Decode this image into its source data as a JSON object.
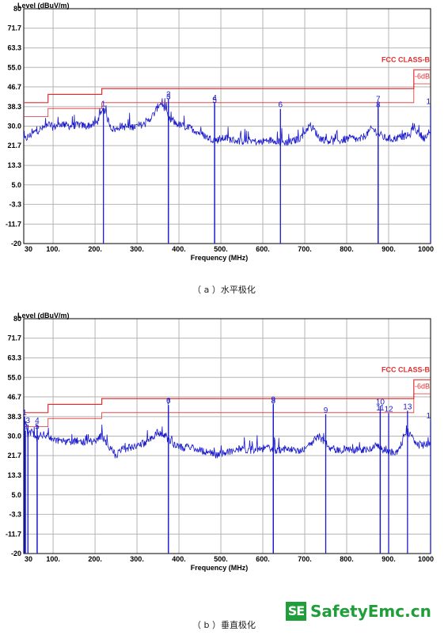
{
  "captions": {
    "a": "（ a ）水平极化",
    "b": "（ b ）垂直极化"
  },
  "watermark": {
    "box": "SE",
    "text": "SafetyEmc.cn"
  },
  "colors": {
    "grid": "#b4b4b4",
    "trace": "#1a1acc",
    "limit": "#e03030",
    "axis": "#000000",
    "marker": "#1a1acc"
  },
  "chart_data": [
    {
      "type": "line",
      "id": "a",
      "xlabel": "Frequency (MHz)",
      "ylabel": "Level (dBuV/m)",
      "xlim": [
        30,
        1000
      ],
      "ylim": [
        -20,
        80
      ],
      "xticks": [
        30,
        100,
        200,
        300,
        400,
        500,
        600,
        700,
        800,
        900,
        1000
      ],
      "xtick_labels": [
        "30",
        "100.",
        "200.",
        "300.",
        "400.",
        "500.",
        "600.",
        "700.",
        "800.",
        "900.",
        "1000"
      ],
      "yticks": [
        -20,
        -11.7,
        -3.3,
        5.0,
        13.3,
        21.7,
        30.0,
        38.3,
        46.7,
        55.0,
        63.3,
        71.7,
        80
      ],
      "ytick_labels": [
        "-20",
        "-11.7",
        "-3.3",
        "5.0",
        "13.3",
        "21.7",
        "30.0",
        "38.3",
        "46.7",
        "55.0",
        "63.3",
        "71.7",
        "80"
      ],
      "limit_labels": [
        "FCC CLASS-B",
        "-6dB"
      ],
      "limits": [
        {
          "name": "FCC CLASS-B",
          "points": [
            [
              30,
              40
            ],
            [
              88,
              40
            ],
            [
              88,
              43.5
            ],
            [
              216,
              43.5
            ],
            [
              216,
              46
            ],
            [
              960,
              46
            ],
            [
              960,
              54
            ],
            [
              1000,
              54
            ]
          ]
        },
        {
          "name": "-6dB",
          "points": [
            [
              30,
              34
            ],
            [
              88,
              34
            ],
            [
              88,
              37.5
            ],
            [
              216,
              37.5
            ],
            [
              216,
              40
            ],
            [
              960,
              40
            ],
            [
              960,
              48
            ],
            [
              1000,
              48
            ]
          ]
        }
      ],
      "trace": {
        "points": [
          [
            30,
            24
          ],
          [
            45,
            26
          ],
          [
            60,
            28
          ],
          [
            75,
            29
          ],
          [
            88,
            31
          ],
          [
            100,
            29.5
          ],
          [
            120,
            31
          ],
          [
            140,
            30
          ],
          [
            160,
            30.5
          ],
          [
            180,
            30
          ],
          [
            200,
            31
          ],
          [
            210,
            33
          ],
          [
            220,
            37
          ],
          [
            230,
            33
          ],
          [
            240,
            29
          ],
          [
            250,
            28.5
          ],
          [
            260,
            30
          ],
          [
            280,
            29.5
          ],
          [
            300,
            30
          ],
          [
            320,
            31
          ],
          [
            340,
            35
          ],
          [
            355,
            40
          ],
          [
            365,
            38
          ],
          [
            375,
            33
          ],
          [
            385,
            32
          ],
          [
            395,
            31
          ],
          [
            410,
            30
          ],
          [
            430,
            29
          ],
          [
            450,
            27
          ],
          [
            470,
            25
          ],
          [
            490,
            24
          ],
          [
            510,
            25
          ],
          [
            530,
            24
          ],
          [
            550,
            23.5
          ],
          [
            570,
            24
          ],
          [
            590,
            23
          ],
          [
            610,
            24
          ],
          [
            630,
            24
          ],
          [
            650,
            23
          ],
          [
            670,
            23.5
          ],
          [
            690,
            25
          ],
          [
            710,
            30
          ],
          [
            720,
            29
          ],
          [
            735,
            25
          ],
          [
            750,
            24
          ],
          [
            770,
            23.5
          ],
          [
            790,
            24
          ],
          [
            810,
            25
          ],
          [
            830,
            24
          ],
          [
            850,
            27
          ],
          [
            860,
            29
          ],
          [
            875,
            27
          ],
          [
            890,
            25
          ],
          [
            910,
            24.5
          ],
          [
            930,
            25.5
          ],
          [
            950,
            26
          ],
          [
            960,
            30
          ],
          [
            970,
            27
          ],
          [
            985,
            25
          ],
          [
            1000,
            26
          ]
        ]
      },
      "markers": [
        {
          "label": "1",
          "freq": 220,
          "level": 38.5
        },
        {
          "label": "2",
          "freq": 375,
          "level": 42.5
        },
        {
          "label": "3",
          "freq": 375,
          "level": 41.5
        },
        {
          "label": "4",
          "freq": 485,
          "level": 41.0
        },
        {
          "label": "5",
          "freq": 485,
          "level": 40.0
        },
        {
          "label": "6",
          "freq": 642,
          "level": 38.0
        },
        {
          "label": "7",
          "freq": 875,
          "level": 40.5
        },
        {
          "label": "8",
          "freq": 875,
          "level": 38.0
        },
        {
          "label": "1",
          "freq": 1000,
          "level": 39.5
        }
      ]
    },
    {
      "type": "line",
      "id": "b",
      "xlabel": "Frequency (MHz)",
      "ylabel": "Level (dBuV/m)",
      "xlim": [
        30,
        1000
      ],
      "ylim": [
        -20,
        80
      ],
      "xticks": [
        30,
        100,
        200,
        300,
        400,
        500,
        600,
        700,
        800,
        900,
        1000
      ],
      "xtick_labels": [
        "30",
        "100.",
        "200.",
        "300.",
        "400.",
        "500.",
        "600.",
        "700.",
        "800.",
        "900.",
        "1000"
      ],
      "yticks": [
        -20,
        -11.7,
        -3.3,
        5.0,
        13.3,
        21.7,
        30.0,
        38.3,
        46.7,
        55.0,
        63.3,
        71.7,
        80
      ],
      "ytick_labels": [
        "-20",
        "-11.7",
        "-3.3",
        "5.0",
        "13.3",
        "21.7",
        "30.0",
        "38.3",
        "46.7",
        "55.0",
        "63.3",
        "71.7",
        "80"
      ],
      "limit_labels": [
        "FCC CLASS-B",
        "-6dB"
      ],
      "limits": [
        {
          "name": "FCC CLASS-B",
          "points": [
            [
              30,
              40
            ],
            [
              88,
              40
            ],
            [
              88,
              43.5
            ],
            [
              216,
              43.5
            ],
            [
              216,
              46
            ],
            [
              960,
              46
            ],
            [
              960,
              54
            ],
            [
              1000,
              54
            ]
          ]
        },
        {
          "name": "-6dB",
          "points": [
            [
              30,
              34
            ],
            [
              88,
              34
            ],
            [
              88,
              37.5
            ],
            [
              216,
              37.5
            ],
            [
              216,
              40
            ],
            [
              960,
              40
            ],
            [
              960,
              48
            ],
            [
              1000,
              48
            ]
          ]
        }
      ],
      "trace": {
        "points": [
          [
            30,
            34
          ],
          [
            35,
            37
          ],
          [
            40,
            30
          ],
          [
            50,
            32
          ],
          [
            60,
            29
          ],
          [
            70,
            31
          ],
          [
            80,
            30
          ],
          [
            90,
            30
          ],
          [
            100,
            28
          ],
          [
            120,
            28
          ],
          [
            140,
            27.5
          ],
          [
            160,
            28
          ],
          [
            180,
            27
          ],
          [
            200,
            28
          ],
          [
            215,
            30
          ],
          [
            225,
            28
          ],
          [
            240,
            24
          ],
          [
            250,
            21.5
          ],
          [
            260,
            24
          ],
          [
            280,
            25
          ],
          [
            300,
            26
          ],
          [
            320,
            27
          ],
          [
            340,
            30
          ],
          [
            350,
            32
          ],
          [
            360,
            31
          ],
          [
            375,
            28
          ],
          [
            390,
            26
          ],
          [
            410,
            25
          ],
          [
            430,
            25.5
          ],
          [
            450,
            24
          ],
          [
            470,
            23
          ],
          [
            490,
            22
          ],
          [
            510,
            23
          ],
          [
            530,
            24
          ],
          [
            550,
            24.5
          ],
          [
            570,
            24
          ],
          [
            590,
            24.5
          ],
          [
            610,
            25
          ],
          [
            630,
            24
          ],
          [
            650,
            24.5
          ],
          [
            670,
            24
          ],
          [
            690,
            24
          ],
          [
            710,
            26
          ],
          [
            730,
            30
          ],
          [
            745,
            28
          ],
          [
            760,
            25
          ],
          [
            780,
            24
          ],
          [
            800,
            24.5
          ],
          [
            820,
            24
          ],
          [
            840,
            24
          ],
          [
            860,
            25
          ],
          [
            875,
            26
          ],
          [
            890,
            24
          ],
          [
            900,
            23
          ],
          [
            920,
            23.5
          ],
          [
            935,
            28
          ],
          [
            945,
            32
          ],
          [
            955,
            30
          ],
          [
            965,
            27
          ],
          [
            980,
            26
          ],
          [
            1000,
            27
          ]
        ]
      },
      "markers": [
        {
          "label": "1",
          "freq": 32,
          "level": 39.0
        },
        {
          "label": "2",
          "freq": 34,
          "level": 33.0
        },
        {
          "label": "3",
          "freq": 40,
          "level": 35.5
        },
        {
          "label": "4",
          "freq": 62,
          "level": 35.5
        },
        {
          "label": "5",
          "freq": 62,
          "level": 33.0
        },
        {
          "label": "6",
          "freq": 375,
          "level": 44.0
        },
        {
          "label": "7",
          "freq": 375,
          "level": 43.5
        },
        {
          "label": "8",
          "freq": 625,
          "level": 44.0
        },
        {
          "label": "9",
          "freq": 625,
          "level": 44.5
        },
        {
          "label": "9",
          "freq": 750,
          "level": 40.0
        },
        {
          "label": "10",
          "freq": 880,
          "level": 43.5
        },
        {
          "label": "11",
          "freq": 880,
          "level": 41.0
        },
        {
          "label": "12",
          "freq": 900,
          "level": 40.5
        },
        {
          "label": "13",
          "freq": 945,
          "level": 41.5
        },
        {
          "label": "1",
          "freq": 1000,
          "level": 37.5
        }
      ]
    }
  ]
}
